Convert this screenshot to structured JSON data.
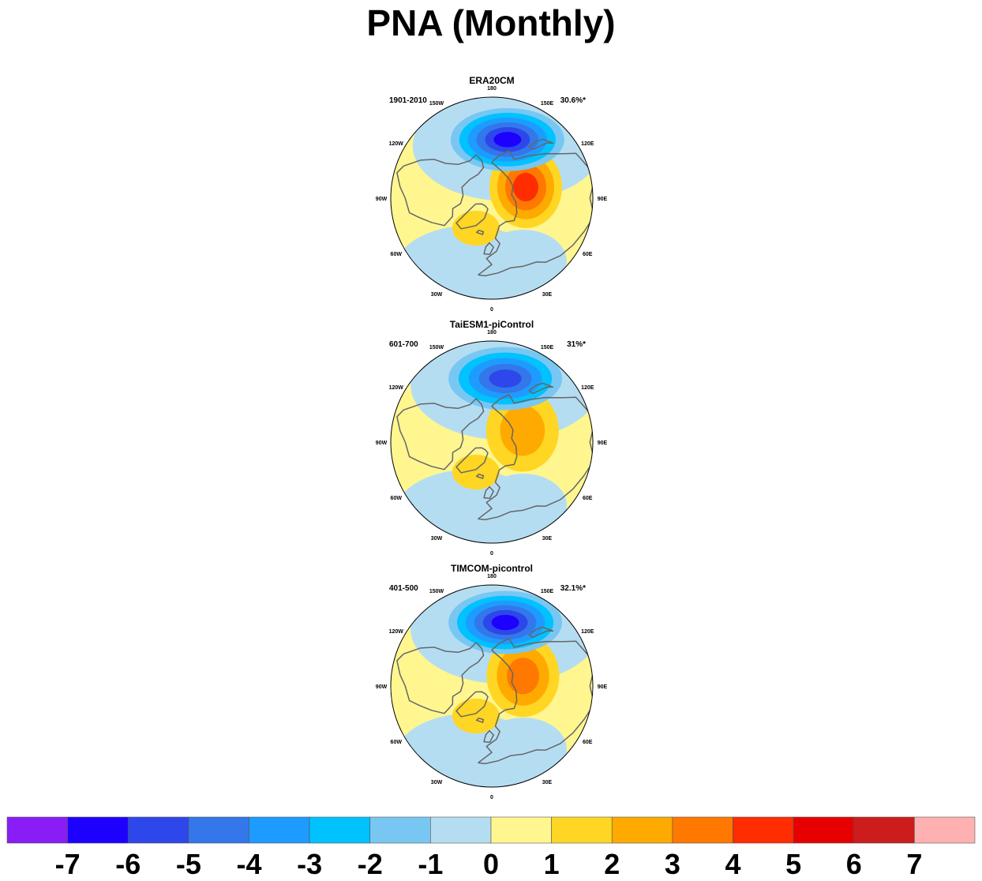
{
  "title": "PNA (Monthly)",
  "panels": [
    {
      "name": "ERA20CM",
      "period": "1901-2010",
      "variance": "30.6%*",
      "centers": {
        "low": {
          "lon": 165,
          "lat": 48,
          "level": 6
        },
        "high": {
          "lon": 110,
          "lat": 58,
          "level": 4
        },
        "atl": {
          "lon": 40,
          "lat": 45,
          "level": 2
        }
      }
    },
    {
      "name": "TaiESM1-piControl",
      "period": "601-700",
      "variance": "31%*",
      "centers": {
        "low": {
          "lon": 168,
          "lat": 45,
          "level": 5
        },
        "high": {
          "lon": 112,
          "lat": 60,
          "level": 2
        },
        "atl": {
          "lon": 40,
          "lat": 45,
          "level": 2
        }
      }
    },
    {
      "name": "TIMCOM-picontrol",
      "period": "401-500",
      "variance": "32.1%*",
      "centers": {
        "low": {
          "lon": 168,
          "lat": 45,
          "level": 6
        },
        "high": {
          "lon": 110,
          "lat": 60,
          "level": 3
        },
        "atl": {
          "lon": 40,
          "lat": 45,
          "level": 2
        }
      }
    }
  ],
  "lon_labels": [
    "180",
    "150E",
    "120E",
    "90E",
    "60E",
    "30E",
    "0",
    "30W",
    "60W",
    "90W",
    "120W",
    "150W"
  ],
  "colorbar": {
    "colors": [
      "#8a1cf5",
      "#1e00ff",
      "#2d47ea",
      "#3377ea",
      "#1e9bff",
      "#00c2ff",
      "#78c7f2",
      "#b5ddf2",
      "#fff690",
      "#ffd623",
      "#ffaa00",
      "#ff7800",
      "#ff2d00",
      "#e60000",
      "#cc1c1c",
      "#ffb1b1"
    ],
    "labels": [
      "-7",
      "-6",
      "-5",
      "-4",
      "-3",
      "-2",
      "-1",
      "0",
      "1",
      "2",
      "3",
      "4",
      "5",
      "6",
      "7"
    ]
  }
}
